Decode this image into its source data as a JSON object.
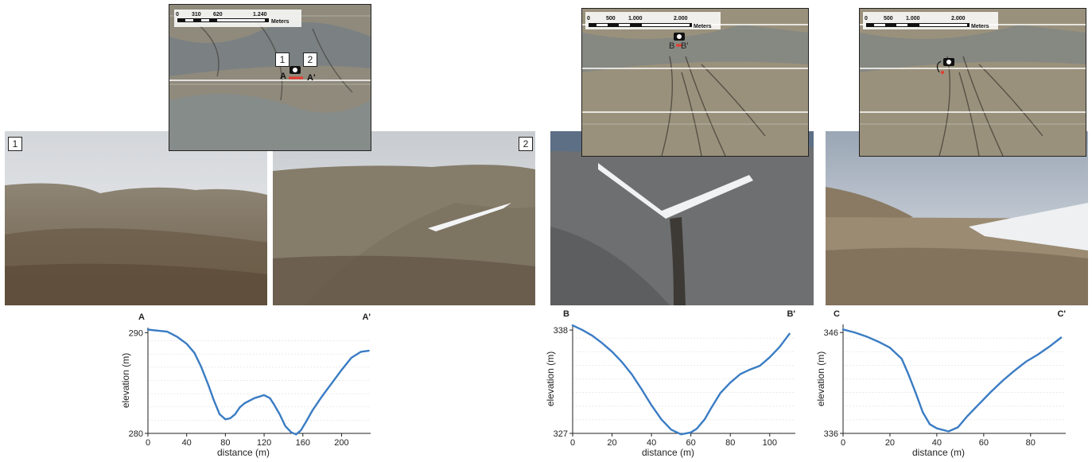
{
  "photos": {
    "photo1_badge": "1",
    "photo2_badge": "2"
  },
  "maps": [
    {
      "scale_labels": [
        "0",
        "310",
        "620",
        "1.240"
      ],
      "units": "Meters",
      "marker_labels": [
        "1",
        "2"
      ],
      "profile_labels": [
        "A",
        "A'"
      ]
    },
    {
      "scale_labels": [
        "0",
        "500",
        "1.000",
        "2.000"
      ],
      "units": "Meters",
      "profile_labels": [
        "B",
        "B'"
      ]
    },
    {
      "scale_labels": [
        "0",
        "500",
        "1.000",
        "2.000"
      ],
      "units": "Meters",
      "profile_labels": []
    }
  ],
  "colors": {
    "line": "#3a7cc3",
    "profile_red": "#e53b2e"
  },
  "chart_data": [
    {
      "type": "line",
      "start_label": "A",
      "end_label": "A'",
      "xlabel": "distance (m)",
      "ylabel": "elevation (m)",
      "xlim": [
        0,
        230
      ],
      "ylim": [
        280,
        290.5
      ],
      "xticks": [
        0,
        40,
        80,
        120,
        160,
        200
      ],
      "yticks": [
        280,
        290
      ],
      "x": [
        0,
        10,
        20,
        30,
        40,
        48,
        55,
        62,
        68,
        74,
        80,
        85,
        90,
        95,
        100,
        110,
        120,
        126,
        130,
        136,
        142,
        148,
        153,
        158,
        163,
        170,
        180,
        190,
        200,
        210,
        220,
        228
      ],
      "y": [
        290.3,
        290.2,
        290.1,
        289.6,
        288.9,
        288.0,
        286.6,
        284.9,
        283.3,
        281.9,
        281.4,
        281.5,
        281.9,
        282.6,
        283.0,
        283.5,
        283.8,
        283.5,
        282.9,
        281.9,
        280.7,
        280.1,
        279.9,
        280.3,
        281.1,
        282.3,
        283.7,
        285.0,
        286.3,
        287.5,
        288.1,
        288.2
      ]
    },
    {
      "type": "line",
      "start_label": "B",
      "end_label": "B'",
      "xlabel": "distance (m)",
      "ylabel": "elevation (m)",
      "xlim": [
        0,
        113
      ],
      "ylim": [
        327,
        338.6
      ],
      "xticks": [
        0,
        20,
        40,
        60,
        80,
        100
      ],
      "yticks": [
        327,
        338
      ],
      "x": [
        0,
        5,
        10,
        15,
        20,
        25,
        30,
        35,
        40,
        45,
        50,
        55,
        60,
        63,
        67,
        70,
        75,
        80,
        85,
        90,
        95,
        100,
        105,
        110
      ],
      "y": [
        338.5,
        338.0,
        337.4,
        336.6,
        335.7,
        334.6,
        333.3,
        331.7,
        330.0,
        328.5,
        327.4,
        326.9,
        327.1,
        327.5,
        328.5,
        329.6,
        331.3,
        332.4,
        333.3,
        333.8,
        334.2,
        335.1,
        336.2,
        337.6
      ]
    },
    {
      "type": "line",
      "start_label": "C",
      "end_label": "C'",
      "xlabel": "distance (m)",
      "ylabel": "elevation (m)",
      "xlim": [
        0,
        95
      ],
      "ylim": [
        336,
        346.8
      ],
      "xticks": [
        0,
        20,
        40,
        60,
        80
      ],
      "yticks": [
        336,
        346
      ],
      "x": [
        0,
        5,
        10,
        15,
        20,
        25,
        28,
        31,
        34,
        37,
        40,
        45,
        49,
        53,
        58,
        63,
        68,
        73,
        78,
        83,
        88,
        93
      ],
      "y": [
        346.3,
        346.0,
        345.6,
        345.1,
        344.5,
        343.4,
        341.8,
        340.0,
        338.1,
        336.9,
        336.5,
        336.2,
        336.6,
        337.7,
        338.9,
        340.1,
        341.2,
        342.2,
        343.1,
        343.8,
        344.6,
        345.5
      ]
    }
  ]
}
